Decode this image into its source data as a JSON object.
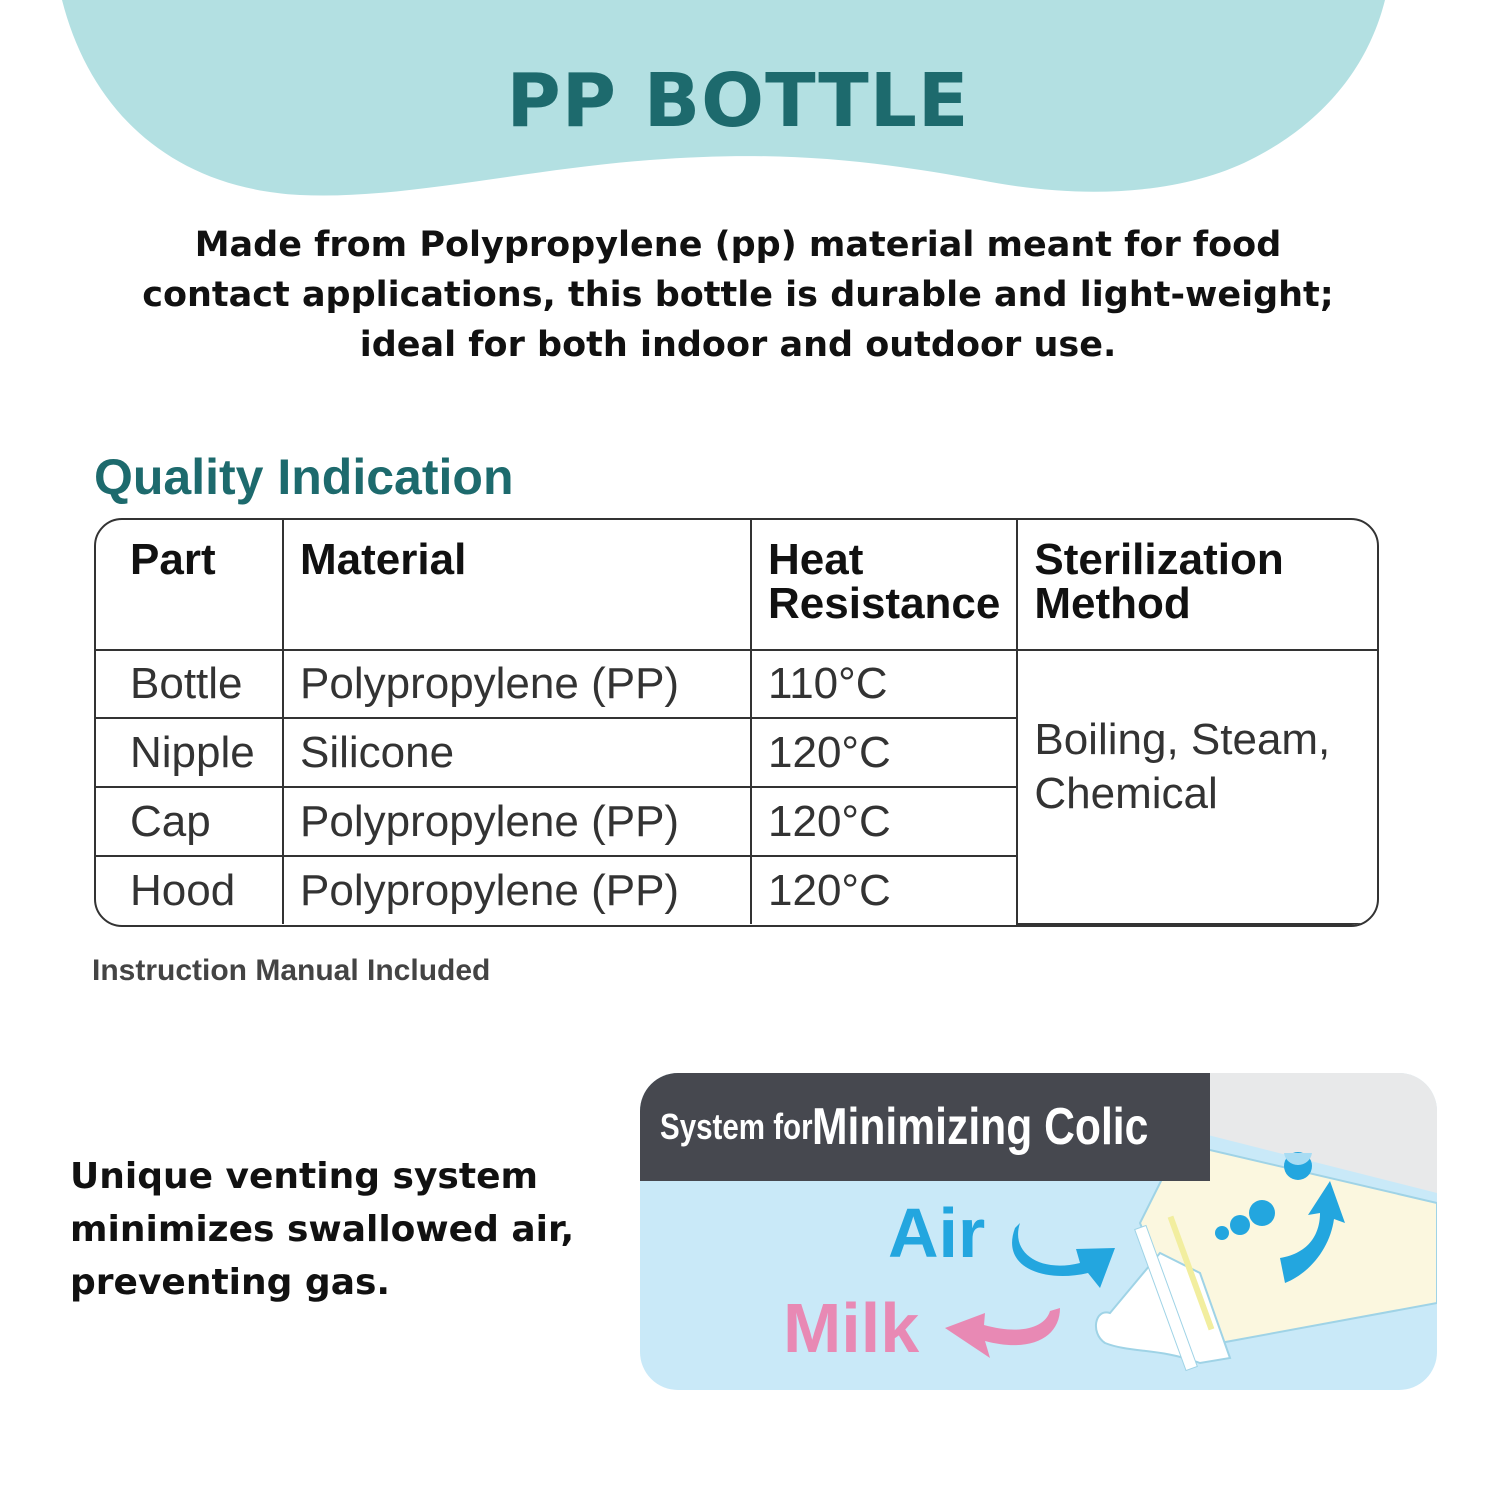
{
  "header": {
    "title": "PP BOTTLE"
  },
  "intro": "Made from Polypropylene (pp) material meant for food contact applications, this bottle is durable and light-weight; ideal for both indoor and outdoor use.",
  "quality": {
    "heading": "Quality Indication",
    "columns": [
      "Part",
      "Material",
      "Heat Resistance",
      "Sterilization Method"
    ],
    "rows": [
      {
        "part": "Bottle",
        "material": "Polypropylene (PP)",
        "heat": "110°C"
      },
      {
        "part": "Nipple",
        "material": "Silicone",
        "heat": "120°C"
      },
      {
        "part": "Cap",
        "material": "Polypropylene (PP)",
        "heat": "120°C"
      },
      {
        "part": "Hood",
        "material": "Polypropylene (PP)",
        "heat": "120°C"
      }
    ],
    "sterilization": "Boiling, Steam, Chemical",
    "note": "Instruction Manual Included"
  },
  "venting": {
    "text": "Unique venting system minimizes swallowed air, preventing gas.",
    "banner_small": "System for",
    "banner_big": "Minimizing Colic",
    "air_label": "Air",
    "milk_label": "Milk"
  },
  "colors": {
    "teal_blob": "#b3e0e2",
    "title_teal": "#1d6a6d",
    "air_blue": "#23a6df",
    "milk_pink": "#e889b4",
    "banner_dark": "#46484f",
    "panel_bg": "#c9e9f8"
  }
}
